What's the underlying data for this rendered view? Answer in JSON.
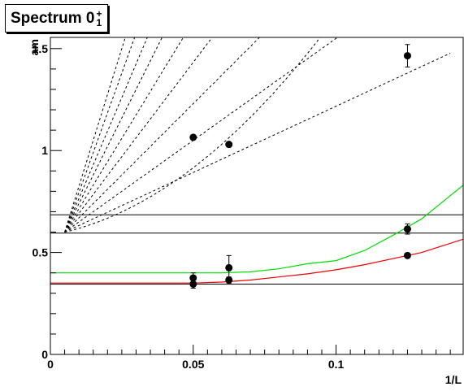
{
  "chart_data": {
    "type": "scatter",
    "title": "Spectrum 0",
    "title_superscript": "+",
    "title_subscript": "1",
    "xlabel": "1/L",
    "ylabel": "am",
    "xlim": [
      0,
      0.1445
    ],
    "ylim": [
      0,
      1.555
    ],
    "x_ticks": [
      0,
      0.05,
      0.1
    ],
    "x_tick_labels": [
      "0",
      "0.05",
      "0.1"
    ],
    "y_ticks": [
      0,
      0.5,
      1,
      1.5
    ],
    "y_tick_labels": [
      "0",
      "0.5",
      "1",
      "1.5"
    ],
    "grid": false,
    "legend": "none",
    "points": [
      {
        "x": 0.05,
        "y": 1.065
      },
      {
        "x": 0.0625,
        "y": 1.03
      },
      {
        "x": 0.125,
        "y": 1.465,
        "err": 0.055
      },
      {
        "x": 0.05,
        "y": 0.375,
        "err": 0.025
      },
      {
        "x": 0.05,
        "y": 0.345,
        "err": 0.02
      },
      {
        "x": 0.0625,
        "y": 0.425,
        "err": 0.06
      },
      {
        "x": 0.0625,
        "y": 0.365,
        "err": 0.015
      },
      {
        "x": 0.125,
        "y": 0.615,
        "err": 0.025
      },
      {
        "x": 0.125,
        "y": 0.485,
        "err": 0.01
      }
    ],
    "horizontal_lines": [
      0.345,
      0.595,
      0.685
    ],
    "fit_curves": [
      {
        "color": "#00dd00",
        "points": [
          [
            0,
            0.4
          ],
          [
            0.01,
            0.4
          ],
          [
            0.02,
            0.4
          ],
          [
            0.03,
            0.4
          ],
          [
            0.04,
            0.4
          ],
          [
            0.05,
            0.4
          ],
          [
            0.06,
            0.4
          ],
          [
            0.07,
            0.405
          ],
          [
            0.08,
            0.42
          ],
          [
            0.09,
            0.445
          ],
          [
            0.1,
            0.46
          ],
          [
            0.11,
            0.51
          ],
          [
            0.12,
            0.585
          ],
          [
            0.13,
            0.665
          ],
          [
            0.1445,
            0.83
          ]
        ]
      },
      {
        "color": "#ee0000",
        "points": [
          [
            0,
            0.35
          ],
          [
            0.01,
            0.35
          ],
          [
            0.02,
            0.35
          ],
          [
            0.03,
            0.35
          ],
          [
            0.04,
            0.35
          ],
          [
            0.05,
            0.35
          ],
          [
            0.06,
            0.355
          ],
          [
            0.07,
            0.365
          ],
          [
            0.08,
            0.38
          ],
          [
            0.09,
            0.395
          ],
          [
            0.1,
            0.415
          ],
          [
            0.11,
            0.44
          ],
          [
            0.12,
            0.47
          ],
          [
            0.13,
            0.5
          ],
          [
            0.1445,
            0.565
          ]
        ]
      }
    ],
    "dashed_curves": [
      {
        "base": 0.6,
        "slope": 3.3,
        "pow": 1
      },
      {
        "base": 0.6,
        "slope": 6.5,
        "pow": 1
      },
      {
        "base": 0.6,
        "slope": 10,
        "pow": 1
      },
      {
        "base": 0.6,
        "slope": 14,
        "pow": 1
      },
      {
        "base": 0.6,
        "slope": 18.5,
        "pow": 1
      },
      {
        "base": 0.6,
        "slope": 23,
        "pow": 1
      },
      {
        "base": 0.6,
        "slope": 28,
        "pow": 1
      },
      {
        "base": 0.6,
        "slope": 33,
        "pow": 1
      },
      {
        "base": 0.6,
        "slope": 39,
        "pow": 1
      },
      {
        "base": 0.6,
        "slope": 45,
        "pow": 1
      }
    ],
    "colors": {
      "axis": "#000000",
      "green_fit": "#00dd00",
      "red_fit": "#ee0000",
      "points": "#000000"
    }
  }
}
